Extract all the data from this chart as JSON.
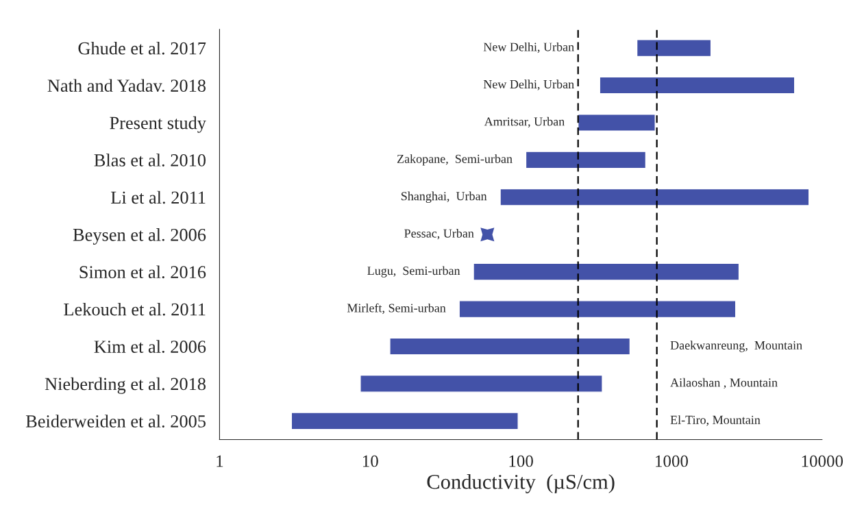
{
  "chart_data": {
    "type": "bar",
    "orientation": "horizontal",
    "log": "x",
    "xlabel": "Conductivity  (µS/cm)",
    "categories": [
      "Ghude et al. 2017",
      "Nath and Yadav. 2018",
      "Present study",
      "Blas et al. 2010",
      "Li et al. 2011",
      "Beysen et al. 2006",
      "Simon et al. 2016",
      "Lekouch et al. 2011",
      "Kim et al. 2006",
      "Nieberding et al. 2018",
      "Beiderweiden et al. 2005"
    ],
    "series": [
      {
        "color": "#4352a8",
        "base": [
          590,
          334,
          240,
          108,
          73,
          null,
          48.5,
          39,
          13.5,
          8.6,
          3.0
        ],
        "values": [
          1240,
          6236,
          540,
          567,
          8117,
          null,
          2761,
          2631,
          517,
          339,
          93
        ]
      },
      {
        "type": "scatter",
        "marker": "star",
        "color": "#4352a8",
        "values": [
          null,
          null,
          null,
          null,
          null,
          60,
          null,
          null,
          null,
          null,
          null
        ]
      }
    ],
    "xlim": [
      1,
      10000
    ],
    "xticks": [
      1,
      10,
      100,
      1000,
      10000
    ],
    "grid": false,
    "legend": false,
    "ref_lines": [
      {
        "axis": "x",
        "value": 240,
        "color": "#000000",
        "line_style": "dashed"
      },
      {
        "axis": "x",
        "value": 800,
        "color": "#000000",
        "line_style": "dashed"
      }
    ],
    "annotations": [
      "New Delhi, Urban",
      "New Delhi, Urban",
      "Amritsar, Urban",
      "Zakopane,  Semi-urban",
      "Shanghai,  Urban",
      "Pessac, Urban",
      "Lugu,  Semi-urban",
      "Mirleft, Semi-urban",
      "Daekwanreung,  Mountain",
      "Ailaoshan , Mountain",
      "El-Tiro, Mountain"
    ]
  }
}
